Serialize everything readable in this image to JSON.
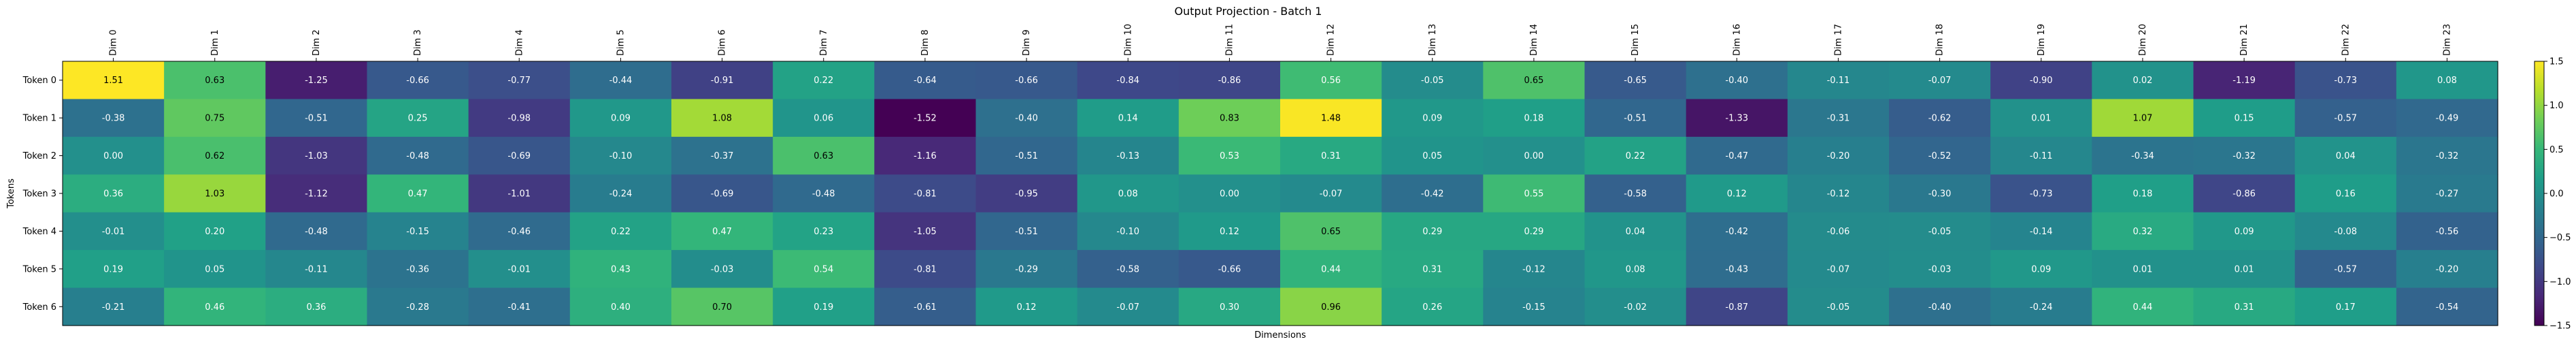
{
  "chart_data": {
    "type": "heatmap",
    "title": "Output Projection - Batch 1",
    "xlabel": "Dimensions",
    "ylabel": "Tokens",
    "columns": [
      "Dim 0",
      "Dim 1",
      "Dim 2",
      "Dim 3",
      "Dim 4",
      "Dim 5",
      "Dim 6",
      "Dim 7",
      "Dim 8",
      "Dim 9",
      "Dim 10",
      "Dim 11",
      "Dim 12",
      "Dim 13",
      "Dim 14",
      "Dim 15",
      "Dim 16",
      "Dim 17",
      "Dim 18",
      "Dim 19",
      "Dim 20",
      "Dim 21",
      "Dim 22",
      "Dim 23"
    ],
    "rows": [
      "Token 0",
      "Token 1",
      "Token 2",
      "Token 3",
      "Token 4",
      "Token 5",
      "Token 6"
    ],
    "values": [
      [
        1.51,
        0.63,
        -1.25,
        -0.66,
        -0.77,
        -0.44,
        -0.91,
        0.22,
        -0.64,
        -0.66,
        -0.84,
        -0.86,
        0.56,
        -0.05,
        0.65,
        -0.65,
        -0.4,
        -0.11,
        -0.07,
        -0.9,
        0.02,
        -1.19,
        -0.73,
        0.08
      ],
      [
        -0.38,
        0.75,
        -0.51,
        0.25,
        -0.98,
        0.09,
        1.08,
        0.06,
        -1.52,
        -0.4,
        0.14,
        0.83,
        1.48,
        0.09,
        0.18,
        -0.51,
        -1.33,
        -0.31,
        -0.62,
        0.01,
        1.07,
        0.15,
        -0.57,
        -0.49
      ],
      [
        -0.0,
        0.62,
        -1.03,
        -0.48,
        -0.69,
        -0.1,
        -0.37,
        0.63,
        -1.16,
        -0.51,
        -0.13,
        0.53,
        0.31,
        0.05,
        -0.0,
        0.22,
        -0.47,
        -0.2,
        -0.52,
        -0.11,
        -0.34,
        -0.32,
        0.04,
        -0.32
      ],
      [
        0.36,
        1.03,
        -1.12,
        0.47,
        -1.01,
        -0.24,
        -0.69,
        -0.48,
        -0.81,
        -0.95,
        0.08,
        0.0,
        -0.07,
        -0.42,
        0.55,
        -0.58,
        0.12,
        -0.12,
        -0.3,
        -0.73,
        0.18,
        -0.86,
        0.16,
        -0.27
      ],
      [
        -0.01,
        0.2,
        -0.48,
        -0.15,
        -0.46,
        0.22,
        0.47,
        0.23,
        -1.05,
        -0.51,
        -0.1,
        0.12,
        0.65,
        0.29,
        0.29,
        0.04,
        -0.42,
        -0.06,
        -0.05,
        -0.14,
        0.32,
        0.09,
        -0.08,
        -0.56
      ],
      [
        0.19,
        0.05,
        -0.11,
        -0.36,
        -0.01,
        0.43,
        -0.03,
        0.54,
        -0.81,
        -0.29,
        -0.58,
        -0.66,
        0.44,
        0.31,
        -0.12,
        0.08,
        -0.43,
        -0.07,
        -0.03,
        0.09,
        0.01,
        0.01,
        -0.57,
        -0.2
      ],
      [
        -0.21,
        0.46,
        0.36,
        -0.28,
        -0.41,
        0.4,
        0.7,
        0.19,
        -0.61,
        0.12,
        -0.07,
        0.3,
        0.96,
        0.26,
        -0.15,
        -0.02,
        -0.87,
        -0.05,
        -0.4,
        -0.24,
        0.44,
        0.31,
        0.17,
        -0.54
      ]
    ],
    "colormap": "viridis",
    "vmin": -1.5,
    "vmax": 1.5,
    "colorbar_ticks": [
      1.5,
      1.0,
      0.5,
      0.0,
      -0.5,
      -1.0,
      -1.5
    ]
  }
}
